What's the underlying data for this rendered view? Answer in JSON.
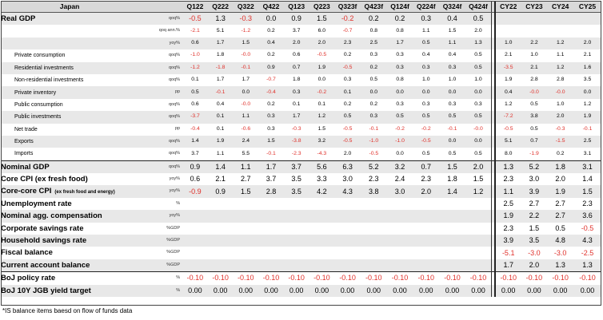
{
  "header": {
    "title": "Japan",
    "quarters": [
      "Q122",
      "Q222",
      "Q322",
      "Q422",
      "Q123",
      "Q223",
      "Q323f",
      "Q423f",
      "Q124f",
      "Q224f",
      "Q324f",
      "Q424f"
    ],
    "years": [
      "CY22",
      "CY23",
      "CY24",
      "CY25"
    ]
  },
  "rows": [
    {
      "label": "Real GDP",
      "unit": "qoq%",
      "style": "big",
      "q": [
        "-0.5",
        "1.3",
        "-0.3",
        "0.0",
        "0.9",
        "1.5",
        "-0.2",
        "0.2",
        "0.2",
        "0.3",
        "0.4",
        "0.5"
      ],
      "y": [
        "",
        "",
        "",
        ""
      ]
    },
    {
      "label": "",
      "unit": "qoq ann.%",
      "style": "small",
      "q": [
        "-2.1",
        "5.1",
        "-1.2",
        "0.2",
        "3.7",
        "6.0",
        "-0.7",
        "0.8",
        "0.8",
        "1.1",
        "1.5",
        "2.0"
      ],
      "y": [
        "",
        "",
        "",
        ""
      ]
    },
    {
      "label": "",
      "unit": "yoy%",
      "style": "small",
      "q": [
        "0.6",
        "1.7",
        "1.5",
        "0.4",
        "2.0",
        "2.0",
        "2.3",
        "2.5",
        "1.7",
        "0.5",
        "1.1",
        "1.3"
      ],
      "y": [
        "1.0",
        "2.2",
        "1.2",
        "2.0"
      ]
    },
    {
      "label": "Private consumption",
      "unit": "qoq%",
      "style": "small sub",
      "q": [
        "-1.0",
        "1.8",
        "-0.0",
        "0.2",
        "0.6",
        "-0.5",
        "0.2",
        "0.3",
        "0.3",
        "0.4",
        "0.4",
        "0.5"
      ],
      "y": [
        "2.1",
        "1.0",
        "1.1",
        "2.1"
      ]
    },
    {
      "label": "Residential investments",
      "unit": "qoq%",
      "style": "small sub",
      "q": [
        "-1.2",
        "-1.8",
        "-0.1",
        "0.9",
        "0.7",
        "1.9",
        "-0.5",
        "0.2",
        "0.3",
        "0.3",
        "0.3",
        "0.5"
      ],
      "y": [
        "-3.5",
        "2.1",
        "1.2",
        "1.6"
      ]
    },
    {
      "label": "Non-residential investments",
      "unit": "qoq%",
      "style": "small sub",
      "q": [
        "0.1",
        "1.7",
        "1.7",
        "-0.7",
        "1.8",
        "0.0",
        "0.3",
        "0.5",
        "0.8",
        "1.0",
        "1.0",
        "1.0"
      ],
      "y": [
        "1.9",
        "2.8",
        "2.8",
        "3.5"
      ]
    },
    {
      "label": "Private inventory",
      "unit": "pp",
      "style": "small sub",
      "q": [
        "0.5",
        "-0.1",
        "0.0",
        "-0.4",
        "0.3",
        "-0.2",
        "0.1",
        "0.0",
        "0.0",
        "0.0",
        "0.0",
        "0.0"
      ],
      "y": [
        "0.4",
        "-0.0",
        "-0.0",
        "0.0"
      ]
    },
    {
      "label": "Public consumption",
      "unit": "qoq%",
      "style": "small sub",
      "q": [
        "0.6",
        "0.4",
        "-0.0",
        "0.2",
        "0.1",
        "0.1",
        "0.2",
        "0.2",
        "0.3",
        "0.3",
        "0.3",
        "0.3"
      ],
      "y": [
        "1.2",
        "0.5",
        "1.0",
        "1.2"
      ]
    },
    {
      "label": "Public investments",
      "unit": "qoq%",
      "style": "small sub",
      "q": [
        "-3.7",
        "0.1",
        "1.1",
        "0.3",
        "1.7",
        "1.2",
        "0.5",
        "0.3",
        "0.5",
        "0.5",
        "0.5",
        "0.5"
      ],
      "y": [
        "-7.2",
        "3.8",
        "2.0",
        "1.9"
      ]
    },
    {
      "label": "Net trade",
      "unit": "pp",
      "style": "small sub",
      "q": [
        "-0.4",
        "0.1",
        "-0.6",
        "0.3",
        "-0.3",
        "1.5",
        "-0.5",
        "-0.1",
        "-0.2",
        "-0.2",
        "-0.1",
        "-0.0"
      ],
      "y": [
        "-0.5",
        "0.5",
        "-0.3",
        "-0.1"
      ]
    },
    {
      "label": "Exports",
      "unit": "qoq%",
      "style": "small sub",
      "q": [
        "1.4",
        "1.9",
        "2.4",
        "1.5",
        "-3.8",
        "3.2",
        "-0.5",
        "-1.0",
        "-1.0",
        "-0.5",
        "0.0",
        "0.0"
      ],
      "y": [
        "5.1",
        "0.7",
        "-1.5",
        "2.5"
      ]
    },
    {
      "label": "Imports",
      "unit": "qoq%",
      "style": "small sub",
      "q": [
        "3.7",
        "1.1",
        "5.5",
        "-0.1",
        "-2.3",
        "-4.3",
        "2.0",
        "-0.5",
        "0.0",
        "0.5",
        "0.5",
        "0.5"
      ],
      "y": [
        "8.0",
        "-1.9",
        "0.2",
        "3.1"
      ]
    },
    {
      "label": "Nominal GDP",
      "unit": "qoq%",
      "style": "big",
      "q": [
        "0.9",
        "1.4",
        "1.1",
        "1.7",
        "3.7",
        "5.6",
        "6.3",
        "5.2",
        "3.2",
        "0.7",
        "1.5",
        "2.0"
      ],
      "y": [
        "1.3",
        "5.2",
        "1.8",
        "3.1"
      ]
    },
    {
      "label": "Core CPI (ex fresh food)",
      "unit": "yoy%",
      "style": "big",
      "q": [
        "0.6",
        "2.1",
        "2.7",
        "3.7",
        "3.5",
        "3.3",
        "3.0",
        "2.3",
        "2.4",
        "2.3",
        "1.8",
        "1.5"
      ],
      "y": [
        "2.3",
        "3.0",
        "2.0",
        "1.4"
      ]
    },
    {
      "label": "Core-core CPI",
      "labelNote": "(ex fresh food and energy)",
      "unit": "yoy%",
      "style": "big",
      "q": [
        "-0.9",
        "0.9",
        "1.5",
        "2.8",
        "3.5",
        "4.2",
        "4.3",
        "3.8",
        "3.0",
        "2.0",
        "1.4",
        "1.2"
      ],
      "y": [
        "1.1",
        "3.9",
        "1.9",
        "1.5"
      ]
    },
    {
      "label": "Unemployment rate",
      "unit": "%",
      "style": "big",
      "q": [
        "",
        "",
        "",
        "",
        "",
        "",
        "",
        "",
        "",
        "",
        "",
        ""
      ],
      "y": [
        "2.5",
        "2.7",
        "2.7",
        "2.3"
      ]
    },
    {
      "label": "Nominal agg. compensation",
      "unit": "yoy%",
      "style": "big",
      "q": [
        "",
        "",
        "",
        "",
        "",
        "",
        "",
        "",
        "",
        "",
        "",
        ""
      ],
      "y": [
        "1.9",
        "2.2",
        "2.7",
        "3.6"
      ]
    },
    {
      "label": "Corporate savings rate",
      "unit": "%GDP",
      "style": "big",
      "q": [
        "",
        "",
        "",
        "",
        "",
        "",
        "",
        "",
        "",
        "",
        "",
        ""
      ],
      "y": [
        "2.3",
        "1.5",
        "0.5",
        "-0.5"
      ]
    },
    {
      "label": "Household savings rate",
      "unit": "%GDP",
      "style": "big",
      "q": [
        "",
        "",
        "",
        "",
        "",
        "",
        "",
        "",
        "",
        "",
        "",
        ""
      ],
      "y": [
        "3.9",
        "3.5",
        "4.8",
        "4.3"
      ]
    },
    {
      "label": "Fiscal balance",
      "unit": "%GDP",
      "style": "big",
      "q": [
        "",
        "",
        "",
        "",
        "",
        "",
        "",
        "",
        "",
        "",
        "",
        ""
      ],
      "y": [
        "-5.1",
        "-3.0",
        "-3.0",
        "-2.5"
      ]
    },
    {
      "label": "Current account balance",
      "unit": "%GDP",
      "style": "big",
      "q": [
        "",
        "",
        "",
        "",
        "",
        "",
        "",
        "",
        "",
        "",
        "",
        ""
      ],
      "y": [
        "1.7",
        "2.0",
        "1.3",
        "1.3"
      ]
    },
    {
      "label": "BoJ policy rate",
      "unit": "%",
      "style": "big",
      "q": [
        "-0.10",
        "-0.10",
        "-0.10",
        "-0.10",
        "-0.10",
        "-0.10",
        "-0.10",
        "-0.10",
        "-0.10",
        "-0.10",
        "-0.10",
        "-0.10"
      ],
      "y": [
        "-0.10",
        "-0.10",
        "-0.10",
        "-0.10"
      ]
    },
    {
      "label": "BoJ 10Y JGB yield target",
      "unit": "%",
      "style": "big",
      "q": [
        "0.00",
        "0.00",
        "0.00",
        "0.00",
        "0.00",
        "0.00",
        "0.00",
        "0.00",
        "0.00",
        "0.00",
        "0.00",
        "0.00"
      ],
      "y": [
        "0.00",
        "0.00",
        "0.00",
        "0.00"
      ]
    }
  ],
  "footnote": "*IS balance items baesd on flow of funds data"
}
